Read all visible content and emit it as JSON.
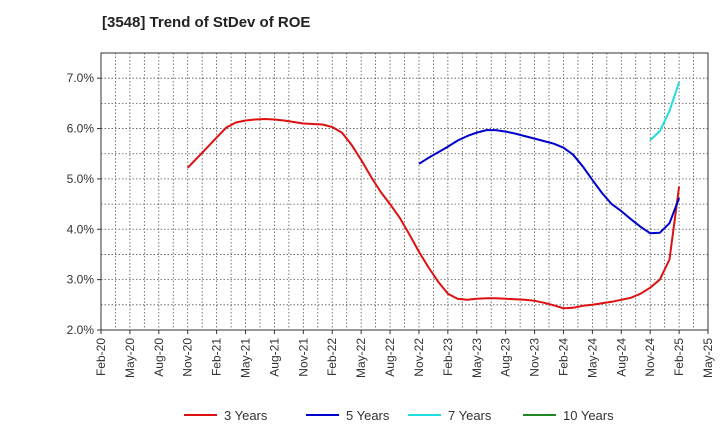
{
  "chart_data": {
    "type": "line",
    "title": "[3548]  Trend of StDev of ROE",
    "xlabel": "",
    "ylabel": "",
    "x_ticks": [
      "Feb-20",
      "May-20",
      "Aug-20",
      "Nov-20",
      "Feb-21",
      "May-21",
      "Aug-21",
      "Nov-21",
      "Feb-22",
      "May-22",
      "Aug-22",
      "Nov-22",
      "Feb-23",
      "May-23",
      "Aug-23",
      "Nov-23",
      "Feb-24",
      "May-24",
      "Aug-24",
      "Nov-24",
      "Feb-25",
      "May-25"
    ],
    "y_ticks": [
      "2.0%",
      "3.0%",
      "4.0%",
      "5.0%",
      "6.0%",
      "7.0%"
    ],
    "ylim": [
      2.0,
      7.5
    ],
    "grid": true,
    "legend_position": "bottom",
    "colors": {
      "3 Years": "#dd1111",
      "5 Years": "#0000cc",
      "7 Years": "#22dddd",
      "10 Years": "#228822"
    },
    "series": [
      {
        "name": "3 Years",
        "color": "#dd1111",
        "x": [
          "Nov-20",
          "Dec-20",
          "Jan-21",
          "Feb-21",
          "Mar-21",
          "Apr-21",
          "May-21",
          "Jun-21",
          "Jul-21",
          "Aug-21",
          "Sep-21",
          "Oct-21",
          "Nov-21",
          "Dec-21",
          "Jan-22",
          "Feb-22",
          "Mar-22",
          "Apr-22",
          "May-22",
          "Jun-22",
          "Jul-22",
          "Aug-22",
          "Sep-22",
          "Oct-22",
          "Nov-22",
          "Dec-22",
          "Jan-23",
          "Feb-23",
          "Mar-23",
          "Apr-23",
          "May-23",
          "Jun-23",
          "Jul-23",
          "Aug-23",
          "Sep-23",
          "Oct-23",
          "Nov-23",
          "Dec-23",
          "Jan-24",
          "Feb-24",
          "Mar-24",
          "Apr-24",
          "May-24",
          "Jun-24",
          "Jul-24",
          "Aug-24",
          "Sep-24",
          "Oct-24",
          "Nov-24",
          "Dec-24",
          "Jan-25",
          "Feb-25"
        ],
        "values": [
          5.22,
          5.42,
          5.62,
          5.82,
          6.02,
          6.12,
          6.16,
          6.18,
          6.19,
          6.18,
          6.16,
          6.13,
          6.1,
          6.09,
          6.08,
          6.03,
          5.92,
          5.68,
          5.38,
          5.05,
          4.75,
          4.5,
          4.23,
          3.9,
          3.55,
          3.24,
          2.96,
          2.72,
          2.62,
          2.6,
          2.62,
          2.63,
          2.63,
          2.62,
          2.61,
          2.6,
          2.58,
          2.54,
          2.49,
          2.43,
          2.44,
          2.48,
          2.5,
          2.53,
          2.56,
          2.6,
          2.64,
          2.72,
          2.84,
          3.0,
          3.4,
          4.85
        ]
      },
      {
        "name": "5 Years",
        "color": "#0000cc",
        "x": [
          "Nov-22",
          "Dec-22",
          "Jan-23",
          "Feb-23",
          "Mar-23",
          "Apr-23",
          "May-23",
          "Jun-23",
          "Jul-23",
          "Aug-23",
          "Sep-23",
          "Oct-23",
          "Nov-23",
          "Dec-23",
          "Jan-24",
          "Feb-24",
          "Mar-24",
          "Apr-24",
          "May-24",
          "Jun-24",
          "Jul-24",
          "Aug-24",
          "Sep-24",
          "Oct-24",
          "Nov-24",
          "Dec-24",
          "Jan-25",
          "Feb-25"
        ],
        "values": [
          5.3,
          5.42,
          5.53,
          5.64,
          5.76,
          5.85,
          5.92,
          5.97,
          5.97,
          5.94,
          5.9,
          5.85,
          5.8,
          5.75,
          5.7,
          5.62,
          5.48,
          5.25,
          4.98,
          4.72,
          4.5,
          4.36,
          4.2,
          4.05,
          3.92,
          3.93,
          4.12,
          4.62
        ]
      },
      {
        "name": "7 Years",
        "color": "#22dddd",
        "x": [
          "Nov-24",
          "Dec-24",
          "Jan-25",
          "Feb-25"
        ],
        "values": [
          5.77,
          5.95,
          6.35,
          6.92
        ]
      },
      {
        "name": "10 Years",
        "color": "#228822",
        "x": [],
        "values": []
      }
    ]
  }
}
